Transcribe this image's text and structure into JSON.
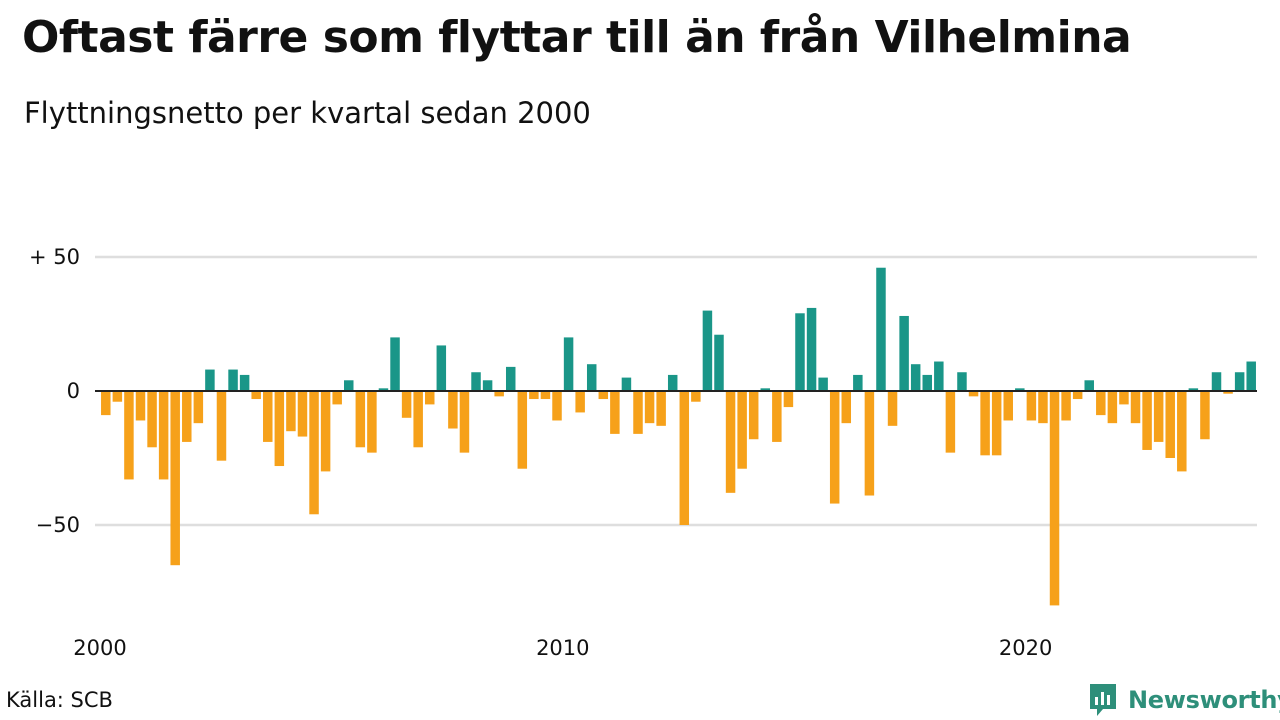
{
  "chart_data": {
    "type": "bar",
    "title": "Oftast färre som flyttar till än från Vilhelmina",
    "subtitle": "Flyttningsnetto per kvartal sedan 2000",
    "x_start_year": 2000,
    "periods_per_year": 4,
    "values": [
      -9,
      -4,
      -33,
      -11,
      -21,
      -33,
      -65,
      -19,
      -12,
      8,
      -26,
      8,
      6,
      -3,
      -19,
      -28,
      -15,
      -17,
      -46,
      -30,
      -5,
      4,
      -21,
      -23,
      1,
      20,
      -10,
      -21,
      -5,
      17,
      -14,
      -23,
      7,
      4,
      -2,
      9,
      -29,
      -3,
      -3,
      -11,
      20,
      -8,
      10,
      -3,
      -16,
      5,
      -16,
      -12,
      -13,
      6,
      -50,
      -4,
      30,
      21,
      -38,
      -29,
      -18,
      1,
      -19,
      -6,
      29,
      31,
      5,
      -42,
      -12,
      6,
      -39,
      46,
      -13,
      28,
      10,
      6,
      11,
      -23,
      7,
      -2,
      -24,
      -24,
      -11,
      1,
      -11,
      -12,
      -80,
      -11,
      -3,
      4,
      -9,
      -12,
      -5,
      -12,
      -22,
      -19,
      -25,
      -30,
      1,
      -18,
      7,
      -1,
      7,
      11
    ],
    "ylim": [
      -88,
      52
    ],
    "y_ticks": [
      {
        "value": 50,
        "label": "+ 50"
      },
      {
        "value": 0,
        "label": "0"
      },
      {
        "value": -50,
        "label": "−50"
      }
    ],
    "x_ticks": [
      {
        "index": 0,
        "label": "2000"
      },
      {
        "index": 40,
        "label": "2010"
      },
      {
        "index": 80,
        "label": "2020"
      }
    ],
    "grid": true,
    "positive_color": "#1a9688",
    "negative_color": "#f6a11a",
    "zero_line_color": "#222222",
    "grid_color": "#dedede"
  },
  "footer": {
    "source": "Källa: SCB",
    "brand": "Newsworthy",
    "brand_icon": "newsworthy-logo-icon",
    "brand_color": "#2e8f7a"
  }
}
